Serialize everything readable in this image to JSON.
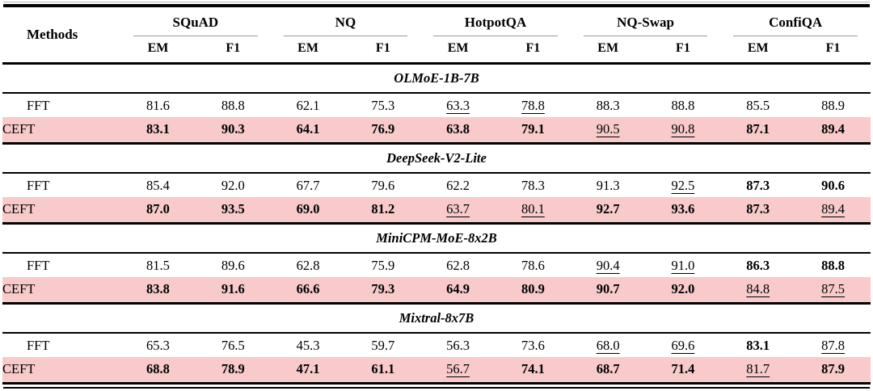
{
  "table": {
    "methods_header": "Methods",
    "highlight_color": "#f8caca",
    "groups": [
      {
        "name": "SQuAD",
        "sub": [
          "EM",
          "F1"
        ]
      },
      {
        "name": "NQ",
        "sub": [
          "EM",
          "F1"
        ]
      },
      {
        "name": "HotpotQA",
        "sub": [
          "EM",
          "F1"
        ]
      },
      {
        "name": "NQ-Swap",
        "sub": [
          "EM",
          "F1"
        ]
      },
      {
        "name": "ConfiQA",
        "sub": [
          "EM",
          "F1"
        ]
      }
    ],
    "sections": [
      {
        "model": "OLMoE-1B-7B",
        "rows": [
          {
            "method": "FFT",
            "highlight": false,
            "cells": [
              {
                "v": "81.6"
              },
              {
                "v": "88.8"
              },
              {
                "v": "62.1"
              },
              {
                "v": "75.3"
              },
              {
                "v": "63.3",
                "s": "u"
              },
              {
                "v": "78.8",
                "s": "u"
              },
              {
                "v": "88.3"
              },
              {
                "v": "88.8"
              },
              {
                "v": "85.5"
              },
              {
                "v": "88.9"
              }
            ]
          },
          {
            "method": "CEFT",
            "highlight": true,
            "cells": [
              {
                "v": "83.1",
                "s": "b"
              },
              {
                "v": "90.3",
                "s": "b"
              },
              {
                "v": "64.1",
                "s": "b"
              },
              {
                "v": "76.9",
                "s": "b"
              },
              {
                "v": "63.8",
                "s": "b"
              },
              {
                "v": "79.1",
                "s": "b"
              },
              {
                "v": "90.5",
                "s": "u"
              },
              {
                "v": "90.8",
                "s": "u"
              },
              {
                "v": "87.1",
                "s": "b"
              },
              {
                "v": "89.4",
                "s": "b"
              }
            ]
          }
        ]
      },
      {
        "model": "DeepSeek-V2-Lite",
        "rows": [
          {
            "method": "FFT",
            "highlight": false,
            "cells": [
              {
                "v": "85.4"
              },
              {
                "v": "92.0"
              },
              {
                "v": "67.7"
              },
              {
                "v": "79.6"
              },
              {
                "v": "62.2"
              },
              {
                "v": "78.3"
              },
              {
                "v": "91.3"
              },
              {
                "v": "92.5",
                "s": "u"
              },
              {
                "v": "87.3",
                "s": "b"
              },
              {
                "v": "90.6",
                "s": "b"
              }
            ]
          },
          {
            "method": "CEFT",
            "highlight": true,
            "cells": [
              {
                "v": "87.0",
                "s": "b"
              },
              {
                "v": "93.5",
                "s": "b"
              },
              {
                "v": "69.0",
                "s": "b"
              },
              {
                "v": "81.2",
                "s": "b"
              },
              {
                "v": "63.7",
                "s": "u"
              },
              {
                "v": "80.1",
                "s": "u"
              },
              {
                "v": "92.7",
                "s": "b"
              },
              {
                "v": "93.6",
                "s": "b"
              },
              {
                "v": "87.3",
                "s": "b"
              },
              {
                "v": "89.4",
                "s": "u"
              }
            ]
          }
        ]
      },
      {
        "model": "MiniCPM-MoE-8x2B",
        "rows": [
          {
            "method": "FFT",
            "highlight": false,
            "cells": [
              {
                "v": "81.5"
              },
              {
                "v": "89.6"
              },
              {
                "v": "62.8"
              },
              {
                "v": "75.9"
              },
              {
                "v": "62.8"
              },
              {
                "v": "78.6"
              },
              {
                "v": "90.4",
                "s": "u"
              },
              {
                "v": "91.0",
                "s": "u"
              },
              {
                "v": "86.3",
                "s": "b"
              },
              {
                "v": "88.8",
                "s": "b"
              }
            ]
          },
          {
            "method": "CEFT",
            "highlight": true,
            "cells": [
              {
                "v": "83.8",
                "s": "b"
              },
              {
                "v": "91.6",
                "s": "b"
              },
              {
                "v": "66.6",
                "s": "b"
              },
              {
                "v": "79.3",
                "s": "b"
              },
              {
                "v": "64.9",
                "s": "b"
              },
              {
                "v": "80.9",
                "s": "b"
              },
              {
                "v": "90.7",
                "s": "b"
              },
              {
                "v": "92.0",
                "s": "b"
              },
              {
                "v": "84.8",
                "s": "u"
              },
              {
                "v": "87.5",
                "s": "u"
              }
            ]
          }
        ]
      },
      {
        "model": "Mixtral-8x7B",
        "rows": [
          {
            "method": "FFT",
            "highlight": false,
            "cells": [
              {
                "v": "65.3"
              },
              {
                "v": "76.5"
              },
              {
                "v": "45.3"
              },
              {
                "v": "59.7"
              },
              {
                "v": "56.3"
              },
              {
                "v": "73.6"
              },
              {
                "v": "68.0",
                "s": "u"
              },
              {
                "v": "69.6",
                "s": "u"
              },
              {
                "v": "83.1",
                "s": "b"
              },
              {
                "v": "87.8",
                "s": "u"
              }
            ]
          },
          {
            "method": "CEFT",
            "highlight": true,
            "cells": [
              {
                "v": "68.8",
                "s": "b"
              },
              {
                "v": "78.9",
                "s": "b"
              },
              {
                "v": "47.1",
                "s": "b"
              },
              {
                "v": "61.1",
                "s": "b"
              },
              {
                "v": "56.7",
                "s": "u"
              },
              {
                "v": "74.1",
                "s": "b"
              },
              {
                "v": "68.7",
                "s": "b"
              },
              {
                "v": "71.4",
                "s": "b"
              },
              {
                "v": "81.7",
                "s": "u"
              },
              {
                "v": "87.9",
                "s": "b"
              }
            ]
          }
        ]
      }
    ]
  }
}
